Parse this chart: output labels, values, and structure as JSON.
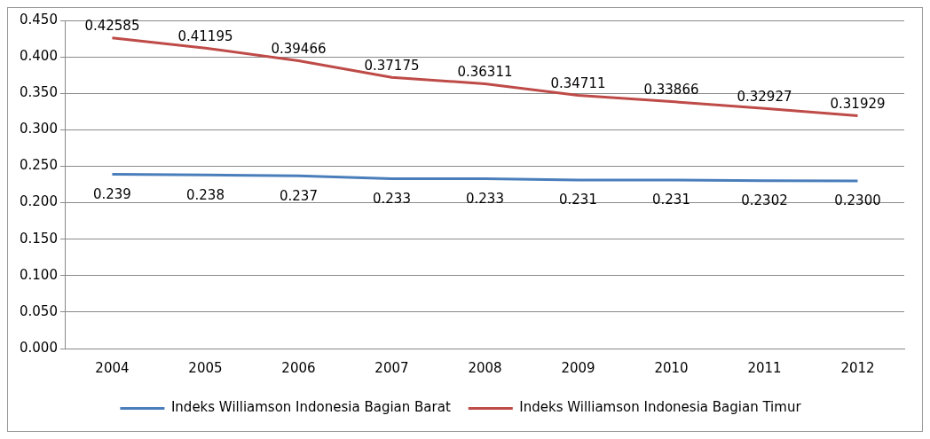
{
  "chart_data": {
    "type": "line",
    "categories": [
      "2004",
      "2005",
      "2006",
      "2007",
      "2008",
      "2009",
      "2010",
      "2011",
      "2012"
    ],
    "series": [
      {
        "name": "Indeks Williamson Indonesia Bagian Barat",
        "color": "#4a7ebb",
        "values": [
          0.239,
          0.238,
          0.237,
          0.233,
          0.233,
          0.231,
          0.231,
          0.2302,
          0.23
        ],
        "value_labels": [
          "0.239",
          "0.238",
          "0.237",
          "0.233",
          "0.233",
          "0.231",
          "0.231",
          "0.2302",
          "0.2300"
        ]
      },
      {
        "name": "Indeks Williamson Indonesia Bagian Timur",
        "color": "#be4b48",
        "values": [
          0.42585,
          0.41195,
          0.39466,
          0.37175,
          0.36311,
          0.34711,
          0.33866,
          0.32927,
          0.31929
        ],
        "value_labels": [
          "0.42585",
          "0.41195",
          "0.39466",
          "0.37175",
          "0.36311",
          "0.34711",
          "0.33866",
          "0.32927",
          "0.31929"
        ]
      }
    ],
    "ylim": [
      0,
      0.45
    ],
    "yticks": [
      {
        "value": 0,
        "label": "0.000"
      },
      {
        "value": 0.05,
        "label": "0.050"
      },
      {
        "value": 0.1,
        "label": "0.100"
      },
      {
        "value": 0.15,
        "label": "0.150"
      },
      {
        "value": 0.2,
        "label": "0.200"
      },
      {
        "value": 0.25,
        "label": "0.250"
      },
      {
        "value": 0.3,
        "label": "0.300"
      },
      {
        "value": 0.35,
        "label": "0.350"
      },
      {
        "value": 0.4,
        "label": "0.400"
      },
      {
        "value": 0.45,
        "label": "0.450"
      }
    ],
    "grid": "y",
    "legend": "bottom",
    "marker": "none",
    "line_style": "solid"
  }
}
